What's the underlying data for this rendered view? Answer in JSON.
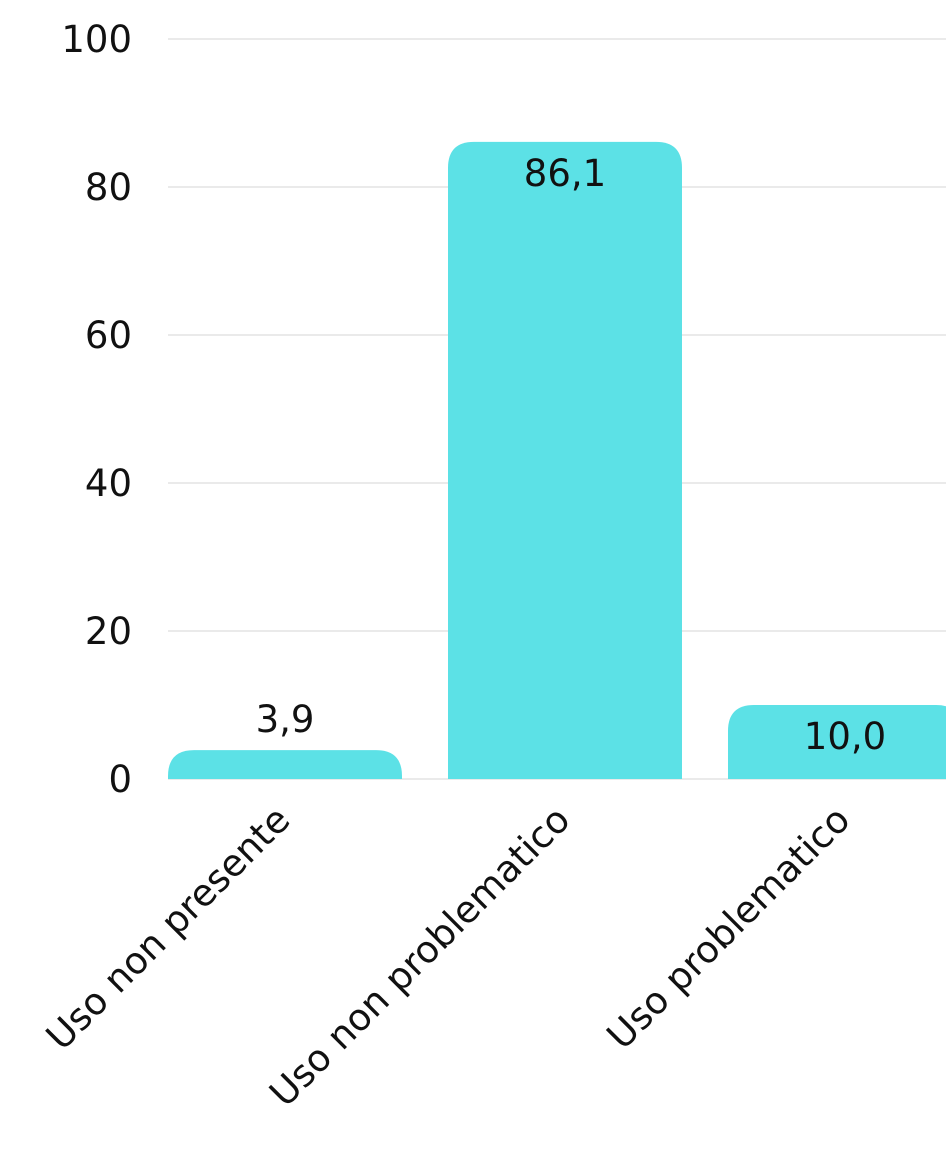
{
  "chart_data": {
    "type": "bar",
    "title": "",
    "xlabel": "",
    "ylabel": "",
    "categories": [
      "Uso non presente",
      "Uso non problematico",
      "Uso problematico"
    ],
    "values": [
      3.9,
      86.1,
      10.0
    ],
    "data_labels": [
      "3,9",
      "86,1",
      "10,0"
    ],
    "ylim": [
      0,
      100
    ],
    "yticks": [
      0,
      20,
      40,
      60,
      80,
      100
    ],
    "ytick_labels": [
      "0",
      "20",
      "40",
      "60",
      "80",
      "100"
    ],
    "grid": true,
    "legend": "none",
    "bar_color": "#5ce1e6",
    "grid_color": "#d4d4d4",
    "text_color": "#111111"
  }
}
